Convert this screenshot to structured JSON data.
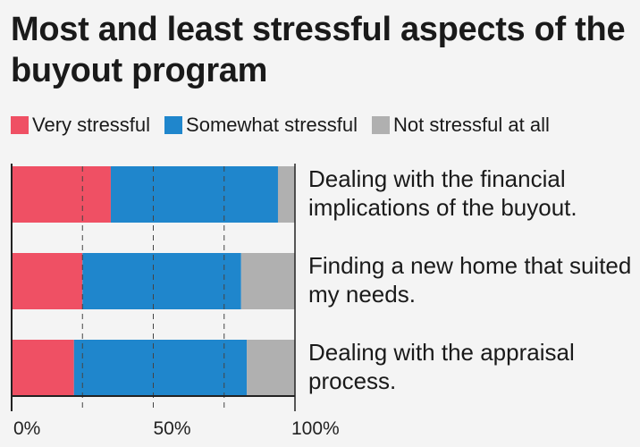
{
  "chart_data": {
    "type": "bar",
    "orientation": "horizontal",
    "stacked": true,
    "title": "Most and least stressful aspects of the buyout program",
    "categories": [
      "Dealing with the financial implications of the buyout.",
      "Finding a new home that suited my needs.",
      "Dealing with the appraisal process."
    ],
    "series": [
      {
        "name": "Very stressful",
        "color": "#ef5064",
        "values": [
          35,
          25,
          22
        ]
      },
      {
        "name": "Somewhat stressful",
        "color": "#1f86cc",
        "values": [
          59,
          56,
          61
        ]
      },
      {
        "name": "Not stressful at all",
        "color": "#b0b0b0",
        "values": [
          6,
          19,
          17
        ]
      }
    ],
    "xlim": [
      0,
      100
    ],
    "xticks": [
      "0%",
      "50%",
      "100%"
    ],
    "gridlines": [
      25,
      50,
      75
    ],
    "legend": "top"
  }
}
